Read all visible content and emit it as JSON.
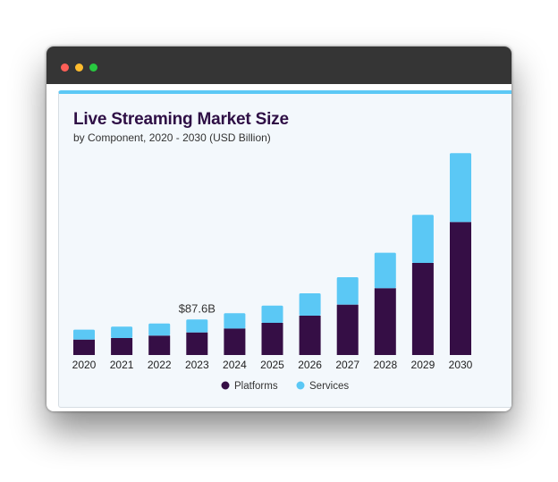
{
  "window": {
    "controls": [
      "close",
      "minimize",
      "maximize"
    ],
    "colors": {
      "close": "#fe5f57",
      "minimize": "#febc2e",
      "maximize": "#28c840",
      "titlebar": "#353535"
    }
  },
  "chart_data": {
    "type": "bar",
    "stacked": true,
    "title": "Live Streaming Market Size",
    "subtitle": "by Component, 2020 - 2030 (USD Billion)",
    "categories": [
      "2020",
      "2021",
      "2022",
      "2023",
      "2024",
      "2025",
      "2026",
      "2027",
      "2028",
      "2029",
      "2030"
    ],
    "series": [
      {
        "name": "Platforms",
        "color": "#350e45",
        "values": [
          38.2,
          41.9,
          47.9,
          55.8,
          65.5,
          79.5,
          97.1,
          124.3,
          164.9,
          227.3,
          328.2
        ]
      },
      {
        "name": "Services",
        "color": "#5bc8f5",
        "values": [
          24.3,
          28.1,
          30.0,
          31.8,
          37.6,
          42.5,
          55.2,
          67.7,
          87.4,
          118.5,
          169.9
        ]
      }
    ],
    "annotations": [
      {
        "category": "2023",
        "text": "$87.6B"
      }
    ],
    "xlabel": "",
    "ylabel": "",
    "ylim": [
      0,
      500
    ],
    "grid": false,
    "y_axis_visible": false,
    "legend": "bottom-center"
  }
}
